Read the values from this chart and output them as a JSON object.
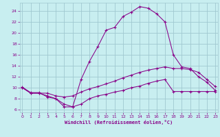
{
  "xlabel": "Windchill (Refroidissement éolien,°C)",
  "bg_color": "#c8eef0",
  "grid_color": "#a0c8d0",
  "line_color": "#880088",
  "x_ticks": [
    0,
    1,
    2,
    3,
    4,
    5,
    6,
    7,
    8,
    9,
    10,
    11,
    12,
    13,
    14,
    15,
    16,
    17,
    18,
    19,
    20,
    21,
    22,
    23
  ],
  "y_ticks": [
    6,
    8,
    10,
    12,
    14,
    16,
    18,
    20,
    22,
    24
  ],
  "xlim": [
    -0.3,
    23.3
  ],
  "ylim": [
    5.5,
    25.5
  ],
  "line1_x": [
    0,
    1,
    2,
    3,
    4,
    5,
    6,
    7,
    8,
    9,
    10,
    11,
    12,
    13,
    14,
    15,
    16,
    17,
    18,
    19,
    20,
    21,
    22,
    23
  ],
  "line1_y": [
    10.1,
    9.1,
    9.1,
    8.3,
    8.0,
    6.5,
    6.5,
    11.5,
    14.8,
    17.5,
    20.5,
    21.0,
    23.0,
    23.8,
    24.8,
    24.5,
    23.5,
    22.0,
    16.0,
    13.8,
    13.5,
    12.0,
    11.0,
    9.5
  ],
  "line2_x": [
    0,
    1,
    2,
    3,
    4,
    5,
    6,
    7,
    8,
    9,
    10,
    11,
    12,
    13,
    14,
    15,
    16,
    17,
    18,
    19,
    20,
    21,
    22,
    23
  ],
  "line2_y": [
    10.0,
    9.0,
    9.0,
    9.0,
    8.5,
    8.3,
    8.5,
    9.2,
    9.8,
    10.2,
    10.7,
    11.2,
    11.8,
    12.3,
    12.8,
    13.2,
    13.5,
    13.8,
    13.5,
    13.5,
    13.3,
    12.8,
    11.5,
    10.2
  ],
  "line3_x": [
    0,
    1,
    2,
    3,
    4,
    5,
    6,
    7,
    8,
    9,
    10,
    11,
    12,
    13,
    14,
    15,
    16,
    17,
    18,
    19,
    20,
    21,
    22,
    23
  ],
  "line3_y": [
    10.0,
    9.0,
    9.0,
    8.5,
    8.0,
    7.0,
    6.5,
    7.0,
    8.0,
    8.5,
    8.8,
    9.2,
    9.5,
    10.0,
    10.3,
    10.8,
    11.2,
    11.5,
    9.3,
    9.3,
    9.3,
    9.3,
    9.3,
    9.3
  ]
}
